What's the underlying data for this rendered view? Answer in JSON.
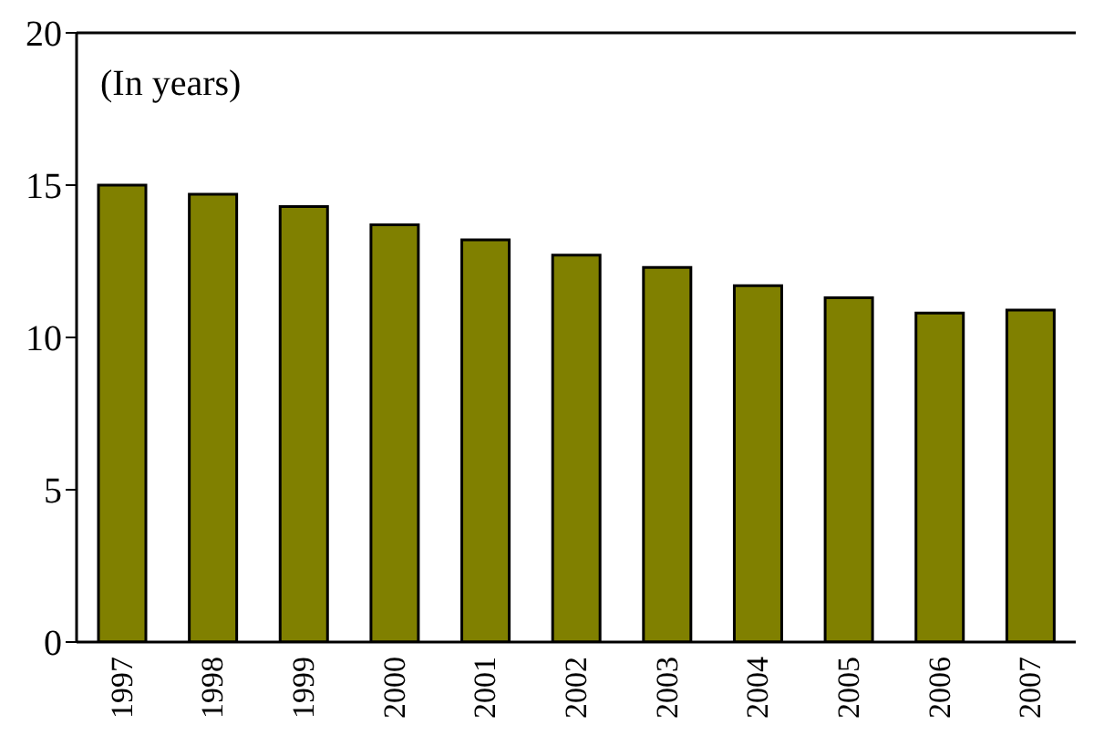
{
  "chart_data": {
    "type": "bar",
    "categories": [
      "1997",
      "1998",
      "1999",
      "2000",
      "2001",
      "2002",
      "2003",
      "2004",
      "2005",
      "2006",
      "2007"
    ],
    "values": [
      15.0,
      14.7,
      14.3,
      13.7,
      13.2,
      12.7,
      12.3,
      11.7,
      11.3,
      10.8,
      10.9
    ],
    "color": "#808000",
    "ylim": [
      0,
      20
    ],
    "yticks": [
      0,
      5,
      10,
      15,
      20
    ],
    "grid": false,
    "annotations": [
      "(In years)"
    ]
  }
}
